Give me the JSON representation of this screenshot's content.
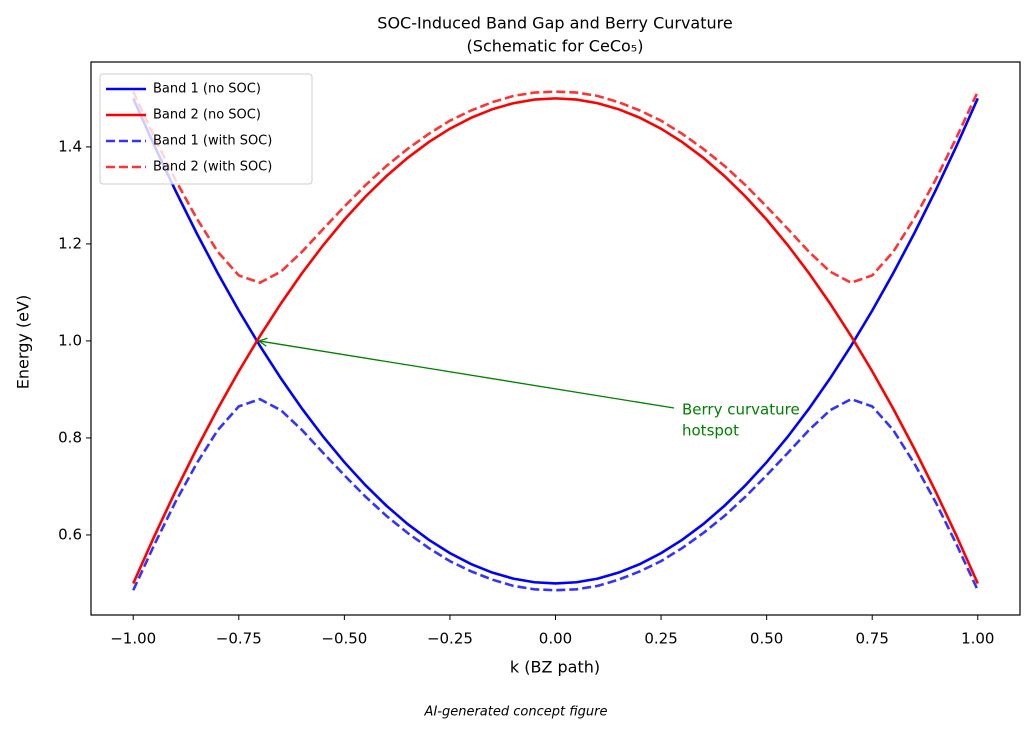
{
  "chart_data": {
    "type": "line",
    "title": "SOC-Induced Band Gap and Berry Curvature",
    "subtitle": "(Schematic for CeCo₅)",
    "x_label": "k (BZ path)",
    "y_label": "Energy (eV)",
    "footer": "AI-generated concept figure",
    "x": [
      -1,
      -0.95,
      -0.9,
      -0.85,
      -0.8,
      -0.75,
      -0.7,
      -0.65,
      -0.6,
      -0.55,
      -0.5,
      -0.45,
      -0.4,
      -0.35,
      -0.3,
      -0.25,
      -0.2,
      -0.15,
      -0.1,
      -0.05,
      0,
      0.05,
      0.1,
      0.15,
      0.2,
      0.25,
      0.3,
      0.35,
      0.4,
      0.45,
      0.5,
      0.55,
      0.6,
      0.65,
      0.7,
      0.75,
      0.8,
      0.85,
      0.9,
      0.95,
      1
    ],
    "series": [
      {
        "name": "Band 1 (no SOC)",
        "color": "#0000ff",
        "linestyle": "solid",
        "alpha": 1,
        "values": [
          1.5,
          1.4025,
          1.31,
          1.2225,
          1.14,
          1.0625,
          0.99,
          0.9225,
          0.86,
          0.8025,
          0.75,
          0.7025,
          0.66,
          0.6225,
          0.59,
          0.5625,
          0.54,
          0.5225,
          0.51,
          0.5025,
          0.5,
          0.5025,
          0.51,
          0.5225,
          0.54,
          0.5625,
          0.59,
          0.6225,
          0.66,
          0.7025,
          0.75,
          0.8025,
          0.86,
          0.9225,
          0.99,
          1.0625,
          1.14,
          1.2225,
          1.31,
          1.4025,
          1.5
        ]
      },
      {
        "name": "Band 2 (no SOC)",
        "color": "#ff0000",
        "linestyle": "solid",
        "alpha": 1,
        "values": [
          0.5,
          0.5975,
          0.69,
          0.7775,
          0.86,
          0.9375,
          1.01,
          1.0775,
          1.14,
          1.1975,
          1.25,
          1.2975,
          1.34,
          1.3775,
          1.41,
          1.4375,
          1.46,
          1.4775,
          1.49,
          1.4975,
          1.5,
          1.4975,
          1.49,
          1.4775,
          1.46,
          1.4375,
          1.41,
          1.3775,
          1.34,
          1.2975,
          1.25,
          1.1975,
          1.14,
          1.0775,
          1.01,
          0.9375,
          0.86,
          0.7775,
          0.69,
          0.5975,
          0.5
        ]
      },
      {
        "name": "Band 1 (with SOC)",
        "color": "#0000ff",
        "linestyle": "dashed",
        "alpha": 0.8,
        "values": [
          0.486,
          0.58,
          0.668,
          0.747,
          0.816,
          0.865,
          0.88,
          0.857,
          0.816,
          0.769,
          0.723,
          0.679,
          0.639,
          0.604,
          0.573,
          0.546,
          0.525,
          0.508,
          0.495,
          0.488,
          0.486,
          0.488,
          0.495,
          0.508,
          0.525,
          0.546,
          0.573,
          0.604,
          0.639,
          0.679,
          0.723,
          0.769,
          0.816,
          0.857,
          0.88,
          0.865,
          0.816,
          0.747,
          0.668,
          0.58,
          0.486
        ]
      },
      {
        "name": "Band 2 (with SOC)",
        "color": "#ff0000",
        "linestyle": "dashed",
        "alpha": 0.8,
        "values": [
          1.514,
          1.42,
          1.332,
          1.253,
          1.184,
          1.135,
          1.12,
          1.143,
          1.184,
          1.231,
          1.277,
          1.321,
          1.361,
          1.396,
          1.427,
          1.454,
          1.475,
          1.492,
          1.505,
          1.512,
          1.514,
          1.512,
          1.505,
          1.492,
          1.475,
          1.454,
          1.427,
          1.396,
          1.361,
          1.321,
          1.277,
          1.231,
          1.184,
          1.143,
          1.12,
          1.135,
          1.184,
          1.253,
          1.332,
          1.42,
          1.514
        ]
      }
    ],
    "xlim": [
      -1.1,
      1.1
    ],
    "ylim": [
      0.435,
      1.575
    ],
    "xticks": [
      {
        "value": -1,
        "label": "−1.00"
      },
      {
        "value": -0.75,
        "label": "−0.75"
      },
      {
        "value": -0.5,
        "label": "−0.50"
      },
      {
        "value": -0.25,
        "label": "−0.25"
      },
      {
        "value": 0,
        "label": "0.00"
      },
      {
        "value": 0.25,
        "label": "0.25"
      },
      {
        "value": 0.5,
        "label": "0.50"
      },
      {
        "value": 0.75,
        "label": "0.75"
      },
      {
        "value": 1,
        "label": "1.00"
      }
    ],
    "yticks": [
      0.6,
      0.8,
      {
        "value": 1,
        "label": "1.0"
      },
      1.2,
      1.4
    ],
    "grid": false,
    "legend": "upper left",
    "annotation": {
      "lines": [
        "Berry curvature",
        "hotspot"
      ],
      "x": -0.707,
      "y": 1.0,
      "color": "#008000"
    }
  }
}
